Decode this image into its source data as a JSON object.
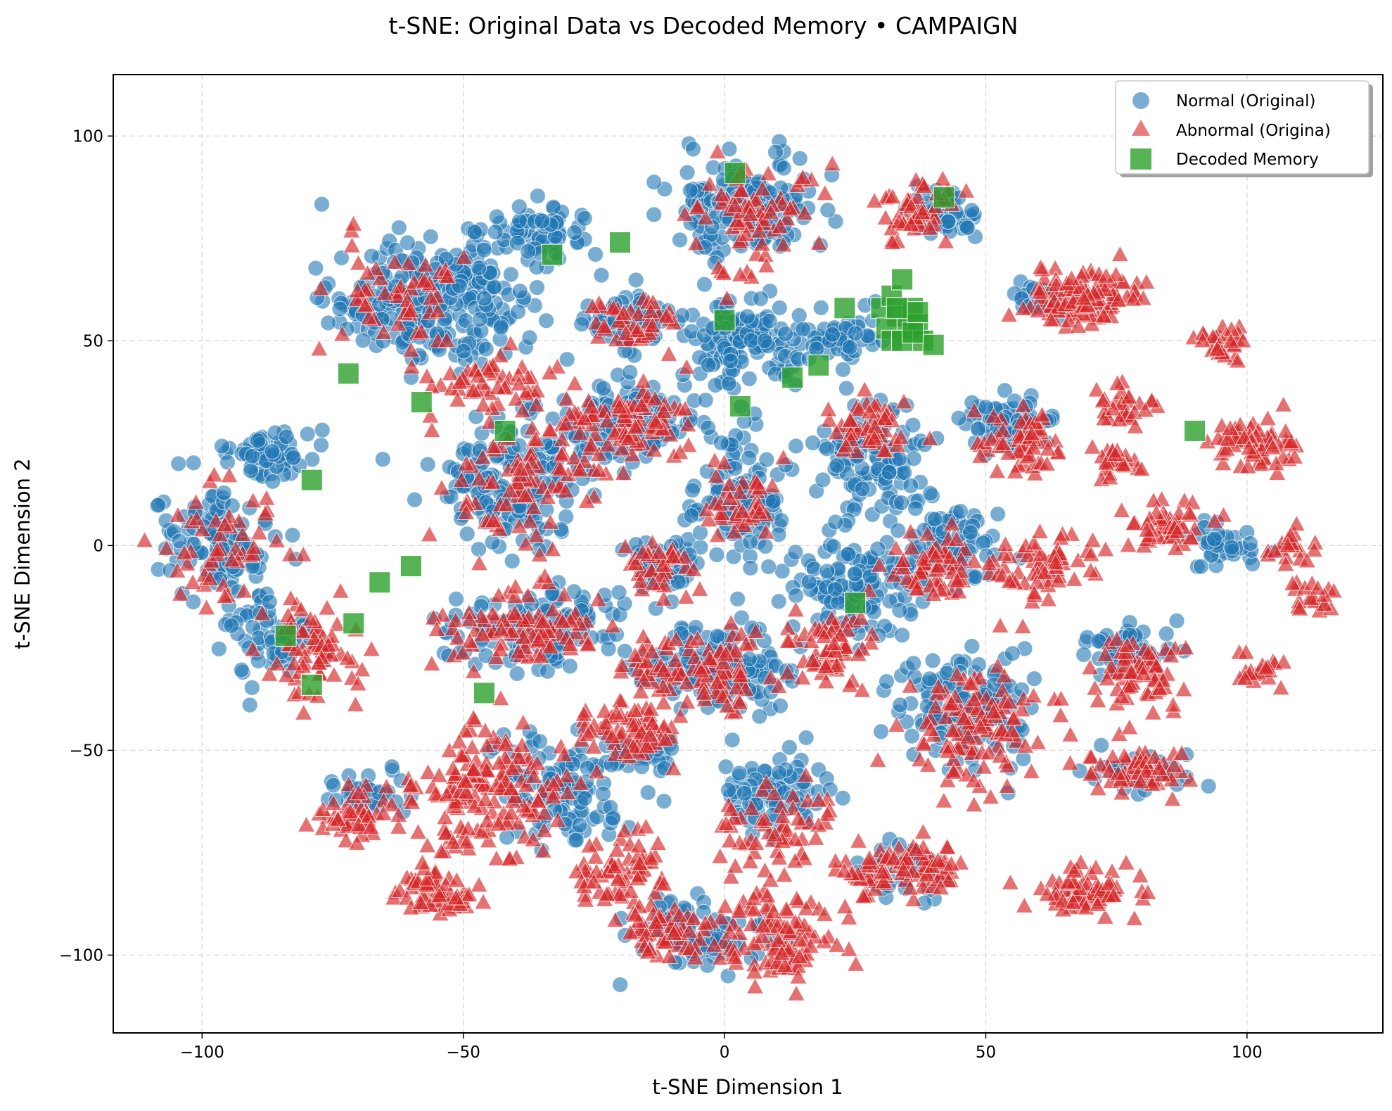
{
  "chart_data": {
    "type": "scatter",
    "title": "t-SNE: Original Data vs Decoded Memory • CAMPAIGN",
    "xlabel": "t-SNE Dimension 1",
    "ylabel": "t-SNE Dimension 2",
    "xlim": [
      -117,
      126
    ],
    "ylim": [
      -119,
      115
    ],
    "xticks": [
      -100,
      -50,
      0,
      50,
      100
    ],
    "yticks": [
      -100,
      -50,
      0,
      50,
      100
    ],
    "xtick_labels": [
      "−100",
      "−50",
      "0",
      "50",
      "100"
    ],
    "ytick_labels": [
      "−100",
      "−50",
      "0",
      "50",
      "100"
    ],
    "grid": true,
    "legend_position": "top-right",
    "colors": {
      "normal": "#1f77b4",
      "abnormal": "#d62728",
      "memory": "#2ca02c"
    },
    "legend": [
      "Normal (Original)",
      "Abnormal (Origina)",
      "Decoded Memory"
    ],
    "clusters_normal": [
      [
        -96,
        0,
        10,
        12,
        110
      ],
      [
        -87,
        22,
        7,
        6,
        60
      ],
      [
        -88,
        -22,
        9,
        8,
        60
      ],
      [
        -63,
        60,
        12,
        12,
        150
      ],
      [
        -48,
        60,
        10,
        14,
        120
      ],
      [
        -36,
        78,
        8,
        6,
        70
      ],
      [
        -40,
        15,
        14,
        14,
        170
      ],
      [
        -20,
        30,
        12,
        10,
        120
      ],
      [
        -18,
        55,
        8,
        6,
        80
      ],
      [
        -35,
        -20,
        14,
        8,
        140
      ],
      [
        -12,
        -5,
        6,
        6,
        50
      ],
      [
        -12,
        -30,
        7,
        6,
        50
      ],
      [
        3,
        10,
        8,
        16,
        110
      ],
      [
        3,
        50,
        10,
        10,
        110
      ],
      [
        4,
        83,
        12,
        10,
        170
      ],
      [
        2,
        -30,
        11,
        12,
        120
      ],
      [
        10,
        -60,
        10,
        8,
        80
      ],
      [
        20,
        50,
        8,
        6,
        60
      ],
      [
        25,
        -10,
        12,
        10,
        120
      ],
      [
        28,
        22,
        10,
        12,
        110
      ],
      [
        42,
        0,
        8,
        10,
        80
      ],
      [
        42,
        80,
        6,
        6,
        60
      ],
      [
        47,
        -40,
        12,
        12,
        140
      ],
      [
        55,
        30,
        8,
        6,
        70
      ],
      [
        -30,
        -60,
        12,
        12,
        100
      ],
      [
        -5,
        -95,
        12,
        8,
        90
      ],
      [
        78,
        -25,
        8,
        6,
        50
      ],
      [
        80,
        -55,
        8,
        5,
        40
      ],
      [
        -68,
        -60,
        6,
        4,
        35
      ],
      [
        -16,
        -50,
        6,
        5,
        40
      ],
      [
        35,
        -80,
        8,
        5,
        40
      ],
      [
        60,
        60,
        6,
        4,
        30
      ],
      [
        95,
        0,
        8,
        5,
        40
      ]
    ],
    "clusters_abnormal": [
      [
        -96,
        0,
        10,
        12,
        50
      ],
      [
        -80,
        -25,
        8,
        10,
        70
      ],
      [
        -63,
        60,
        12,
        12,
        55
      ],
      [
        -45,
        40,
        12,
        6,
        50
      ],
      [
        -40,
        15,
        14,
        14,
        80
      ],
      [
        -20,
        30,
        12,
        10,
        90
      ],
      [
        -18,
        55,
        8,
        6,
        40
      ],
      [
        -38,
        -20,
        14,
        8,
        90
      ],
      [
        -45,
        -60,
        14,
        14,
        160
      ],
      [
        -55,
        -85,
        8,
        5,
        60
      ],
      [
        -20,
        -80,
        8,
        8,
        70
      ],
      [
        -18,
        -45,
        8,
        6,
        70
      ],
      [
        -12,
        -5,
        6,
        6,
        35
      ],
      [
        -12,
        -30,
        7,
        6,
        35
      ],
      [
        4,
        80,
        12,
        12,
        70
      ],
      [
        0,
        -30,
        10,
        10,
        60
      ],
      [
        3,
        10,
        6,
        10,
        40
      ],
      [
        10,
        -70,
        10,
        10,
        60
      ],
      [
        10,
        -95,
        10,
        10,
        100
      ],
      [
        28,
        30,
        8,
        8,
        50
      ],
      [
        20,
        -25,
        10,
        10,
        60
      ],
      [
        30,
        -80,
        6,
        6,
        50
      ],
      [
        40,
        -5,
        8,
        8,
        60
      ],
      [
        47,
        -45,
        12,
        12,
        110
      ],
      [
        38,
        82,
        6,
        8,
        50
      ],
      [
        57,
        25,
        8,
        8,
        60
      ],
      [
        62,
        -5,
        8,
        8,
        60
      ],
      [
        68,
        60,
        10,
        6,
        110
      ],
      [
        75,
        35,
        6,
        5,
        30
      ],
      [
        75,
        20,
        5,
        4,
        25
      ],
      [
        78,
        -30,
        8,
        8,
        70
      ],
      [
        80,
        -55,
        8,
        5,
        60
      ],
      [
        85,
        5,
        8,
        6,
        50
      ],
      [
        95,
        50,
        4,
        4,
        30
      ],
      [
        102,
        25,
        8,
        6,
        60
      ],
      [
        108,
        0,
        4,
        4,
        20
      ],
      [
        112,
        -12,
        4,
        4,
        20
      ],
      [
        102,
        -30,
        4,
        4,
        20
      ],
      [
        70,
        -85,
        10,
        5,
        80
      ],
      [
        40,
        -78,
        5,
        5,
        40
      ],
      [
        -70,
        -65,
        8,
        6,
        50
      ],
      [
        -10,
        -95,
        8,
        5,
        50
      ]
    ],
    "memory_points": [
      [
        2,
        91
      ],
      [
        -20,
        74
      ],
      [
        -33,
        71
      ],
      [
        -72,
        42
      ],
      [
        -58,
        35
      ],
      [
        -42,
        28
      ],
      [
        -79,
        16
      ],
      [
        -66,
        -9
      ],
      [
        -60,
        -5
      ],
      [
        -71,
        -19
      ],
      [
        -84,
        -22
      ],
      [
        -79,
        -34
      ],
      [
        -46,
        -36
      ],
      [
        13,
        41
      ],
      [
        18,
        44
      ],
      [
        23,
        58
      ],
      [
        42,
        85
      ],
      [
        90,
        28
      ],
      [
        25,
        -14
      ],
      [
        3,
        34
      ],
      [
        0,
        55
      ],
      [
        30,
        58
      ],
      [
        32,
        61
      ],
      [
        33,
        56
      ],
      [
        34,
        65
      ],
      [
        35,
        53
      ],
      [
        36,
        58
      ],
      [
        31,
        53
      ],
      [
        37,
        54
      ],
      [
        38,
        50
      ],
      [
        40,
        49
      ],
      [
        32,
        50
      ],
      [
        34,
        50
      ],
      [
        36,
        52
      ],
      [
        33,
        58
      ],
      [
        37,
        57
      ]
    ]
  }
}
